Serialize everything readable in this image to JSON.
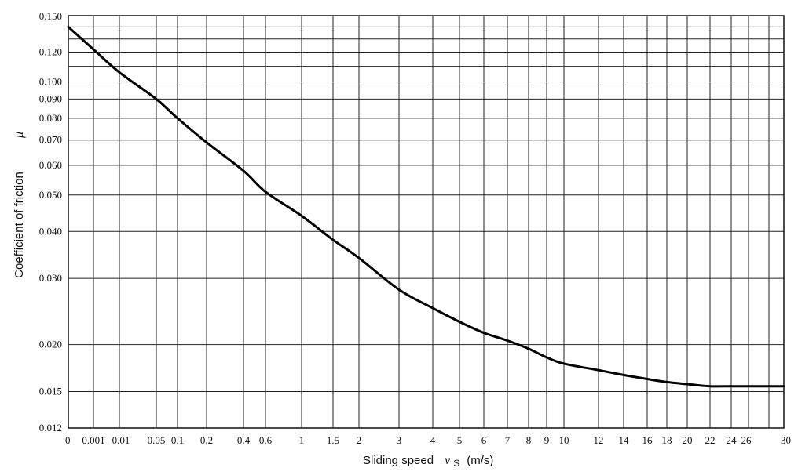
{
  "chart_data": {
    "type": "line",
    "title": "",
    "xlabel": {
      "prefix": "Sliding speed",
      "symbol": "v",
      "subscript": "S",
      "unit": "(m/s)"
    },
    "ylabel": {
      "text": "Coefficient of friction",
      "symbol": "μ"
    },
    "x_tick_labels": [
      "0",
      "0.001",
      "0.01",
      "0.05",
      "0.1",
      "0.2",
      "0.4",
      "0.6",
      "1",
      "1.5",
      "2",
      "3",
      "4",
      "5",
      "6",
      "7",
      "8",
      "9",
      "10",
      "12",
      "14",
      "16",
      "18",
      "20",
      "22",
      "24",
      "26",
      "30"
    ],
    "y_tick_labels": [
      "0.150",
      "0.120",
      "0.100",
      "0.090",
      "0.080",
      "0.070",
      "0.060",
      "0.050",
      "0.040",
      "0.030",
      "0.020",
      "0.015",
      "0.012"
    ],
    "y_ticks": [
      0.15,
      0.12,
      0.1,
      0.09,
      0.08,
      0.07,
      0.06,
      0.05,
      0.04,
      0.03,
      0.02,
      0.015,
      0.012
    ],
    "ylim": [
      0.012,
      0.15
    ],
    "xlim": [
      0,
      30
    ],
    "y_scale": "log",
    "grid": true,
    "series": [
      {
        "x": [
          0,
          0.001,
          0.01,
          0.05,
          0.1,
          0.2,
          0.4,
          0.6,
          1,
          1.5,
          2,
          3,
          4,
          5,
          6,
          7,
          8,
          9,
          10,
          12,
          14,
          16,
          18,
          20,
          22,
          24,
          26,
          30
        ],
        "y": [
          0.14,
          0.122,
          0.106,
          0.09,
          0.08,
          0.069,
          0.058,
          0.051,
          0.044,
          0.038,
          0.034,
          0.028,
          0.025,
          0.023,
          0.0215,
          0.0205,
          0.0195,
          0.0185,
          0.0178,
          0.0171,
          0.0166,
          0.0162,
          0.0159,
          0.0157,
          0.0155,
          0.0155,
          0.0155,
          0.0155
        ]
      }
    ]
  }
}
